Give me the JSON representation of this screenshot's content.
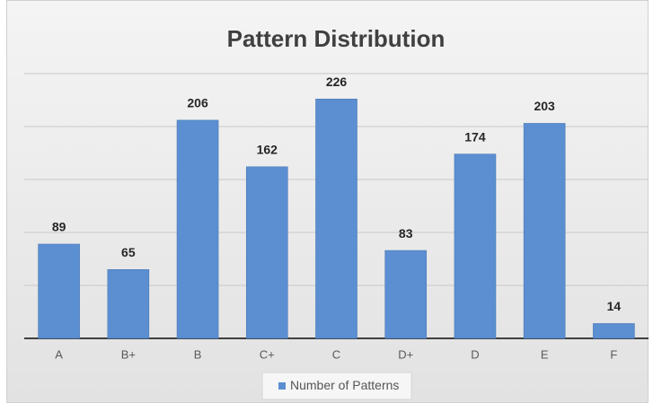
{
  "chart_data": {
    "type": "bar",
    "title": "Pattern Distribution",
    "categories": [
      "A",
      "B+",
      "B",
      "C+",
      "C",
      "D+",
      "D",
      "E",
      "F"
    ],
    "series": [
      {
        "name": "Number of Patterns",
        "color": "#5b8fd2",
        "values": [
          89,
          65,
          206,
          162,
          226,
          83,
          174,
          203,
          14
        ]
      }
    ],
    "ylim": [
      0,
      250
    ],
    "yticks": [
      0,
      50,
      100,
      150,
      200,
      250
    ],
    "grid": true,
    "legend": "bottom"
  }
}
